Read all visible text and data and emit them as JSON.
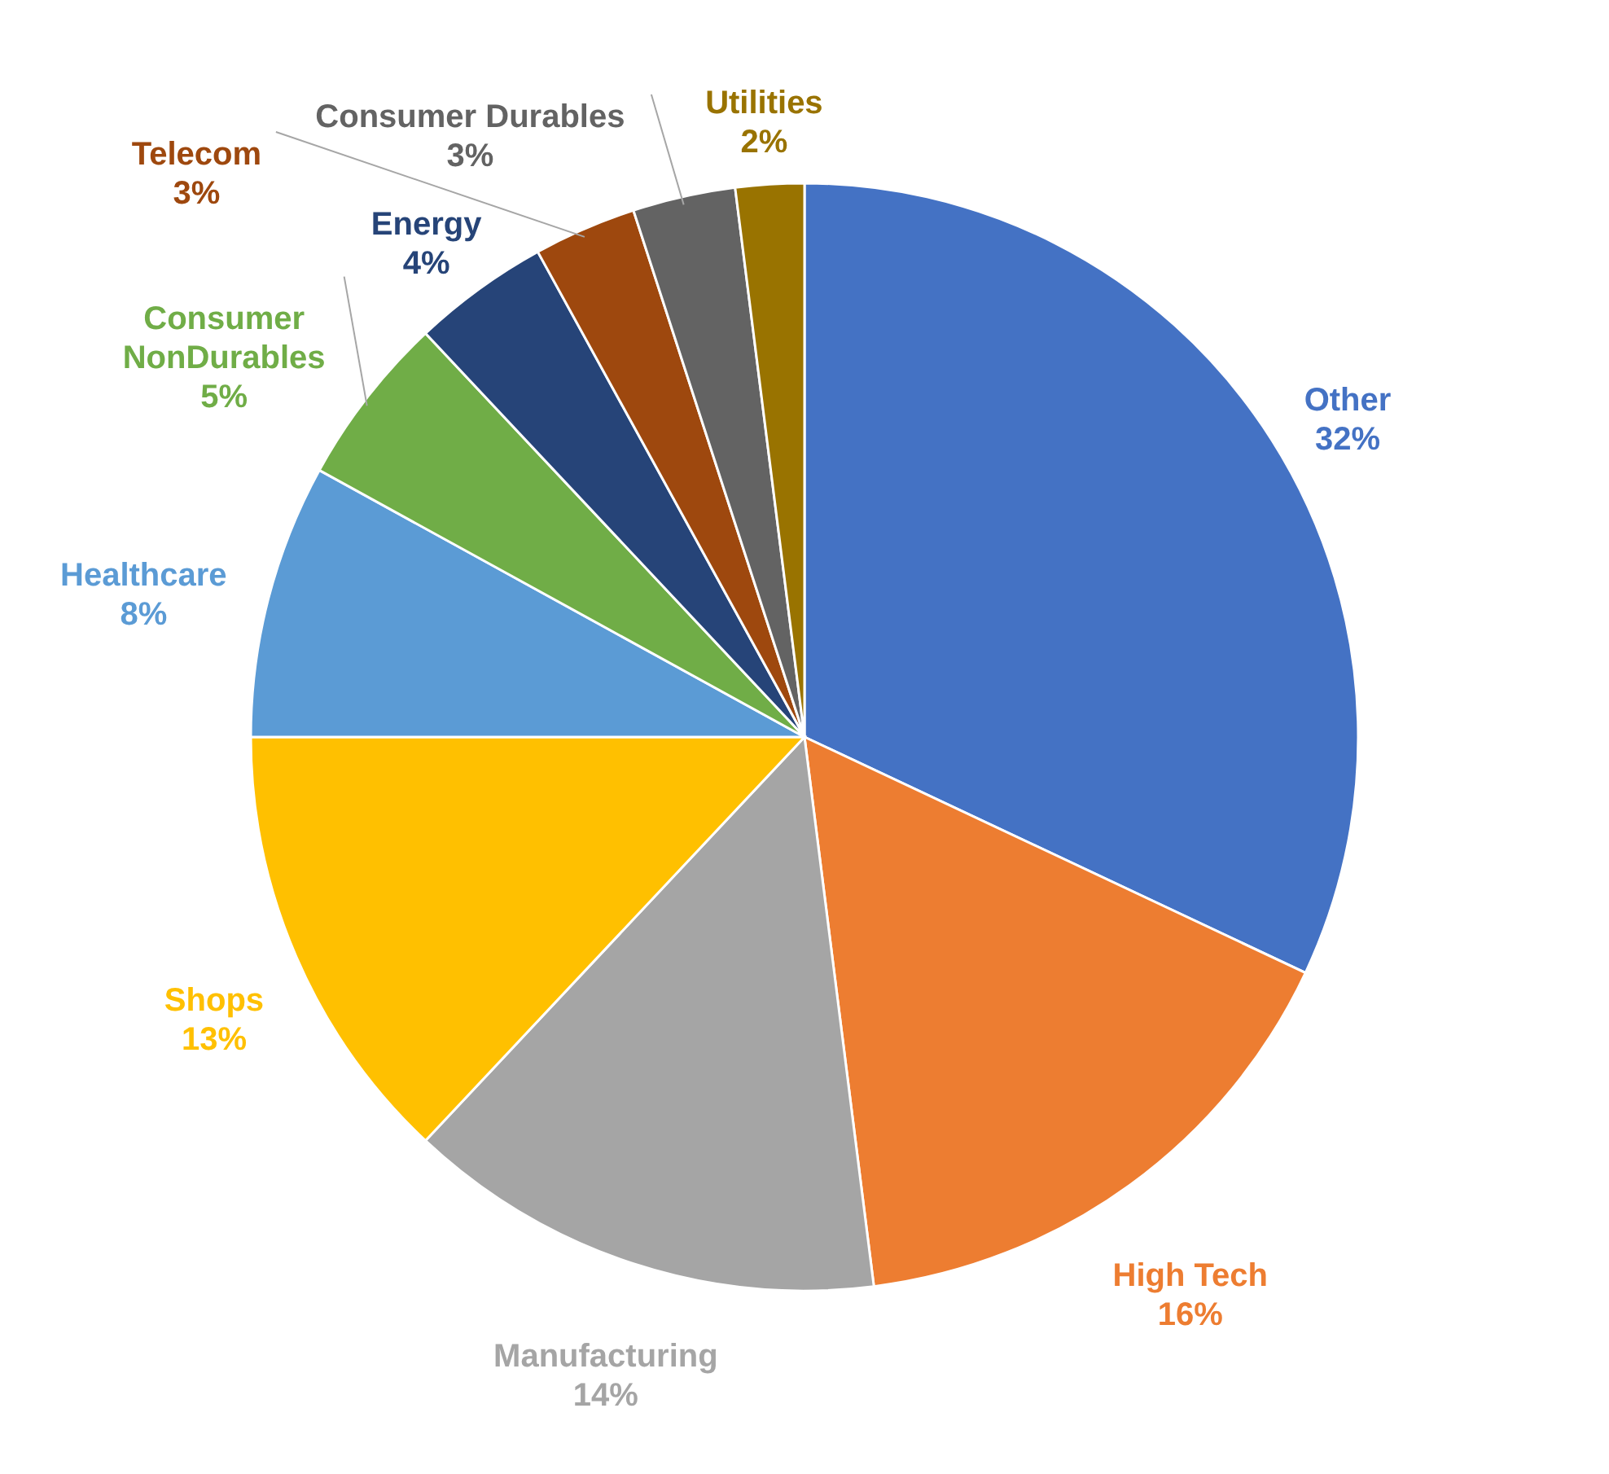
{
  "chart_data": {
    "type": "pie",
    "categories": [
      "Other",
      "High Tech",
      "Manufacturing",
      "Shops",
      "Healthcare",
      "Consumer NonDurables",
      "Energy",
      "Telecom",
      "Consumer Durables",
      "Utilities"
    ],
    "values": [
      32,
      16,
      14,
      13,
      8,
      5,
      4,
      3,
      3,
      2
    ],
    "value_labels": [
      "32%",
      "16%",
      "14%",
      "13%",
      "8%",
      "5%",
      "4%",
      "3%",
      "3%",
      "2%"
    ],
    "colors": [
      "#4472c4",
      "#ed7d31",
      "#a5a5a5",
      "#ffc000",
      "#5b9bd5",
      "#70ad47",
      "#264478",
      "#9e480e",
      "#636363",
      "#997300"
    ]
  }
}
